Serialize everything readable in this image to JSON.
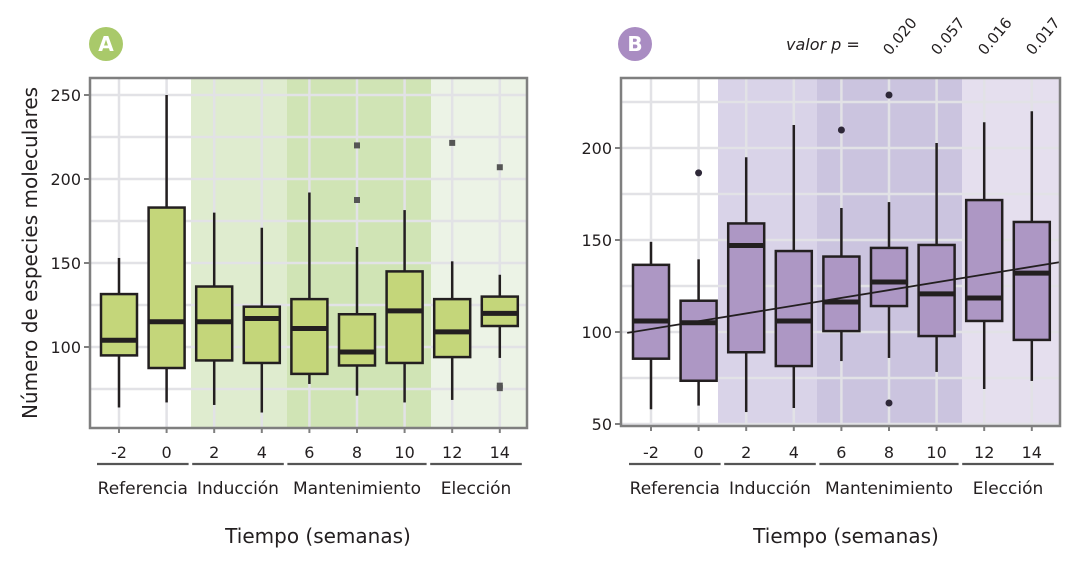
{
  "chart_data": [
    {
      "type": "boxplot",
      "panel_label": "A",
      "title": "",
      "xlabel": "Tiempo (semanas)",
      "ylabel": "Número de especies moleculares",
      "ylim": [
        55,
        258
      ],
      "yticks": [
        100,
        150,
        200,
        250
      ],
      "categories": [
        "-2",
        "0",
        "2",
        "4",
        "6",
        "8",
        "10",
        "12",
        "14"
      ],
      "groups": [
        {
          "label": "Referencia",
          "categories": [
            "-2",
            "0"
          ],
          "shade": "#ffffff"
        },
        {
          "label": "Inducción",
          "categories": [
            "2",
            "4"
          ],
          "shade": "#dfeccf"
        },
        {
          "label": "Mantenimiento",
          "categories": [
            "6",
            "8",
            "10"
          ],
          "shade": "#d0e4b5"
        },
        {
          "label": "Elección",
          "categories": [
            "12",
            "14"
          ],
          "shade": "#ecf3e6"
        }
      ],
      "boxes": [
        {
          "week": "-2",
          "whisker_low": 64,
          "q1": 95,
          "median": 104,
          "q3": 131.5,
          "whisker_high": 153,
          "outliers": []
        },
        {
          "week": "0",
          "whisker_low": 67,
          "q1": 87.5,
          "median": 115,
          "q3": 183,
          "whisker_high": 250,
          "outliers": []
        },
        {
          "week": "2",
          "whisker_low": 65.5,
          "q1": 92,
          "median": 115,
          "q3": 136,
          "whisker_high": 180,
          "outliers": []
        },
        {
          "week": "4",
          "whisker_low": 61,
          "q1": 90.5,
          "median": 117,
          "q3": 124,
          "whisker_high": 171,
          "outliers": []
        },
        {
          "week": "6",
          "whisker_low": 78,
          "q1": 84,
          "median": 111,
          "q3": 128.5,
          "whisker_high": 192,
          "outliers": []
        },
        {
          "week": "8",
          "whisker_low": 71,
          "q1": 89,
          "median": 97,
          "q3": 119.5,
          "whisker_high": 159.5,
          "outliers": [
            220,
            187.5
          ]
        },
        {
          "week": "10",
          "whisker_low": 67,
          "q1": 90.5,
          "median": 121.5,
          "q3": 145,
          "whisker_high": 181.5,
          "outliers": []
        },
        {
          "week": "12",
          "whisker_low": 68.5,
          "q1": 94,
          "median": 109,
          "q3": 128.5,
          "whisker_high": 151,
          "outliers": [
            221.5
          ]
        },
        {
          "week": "14",
          "whisker_low": 93.5,
          "q1": 112.5,
          "median": 120,
          "q3": 130,
          "whisker_high": 143,
          "outliers": [
            207,
            77,
            75.5
          ]
        }
      ],
      "box_fill": "#c4d67a",
      "outlier_shape": "square",
      "outlier_color": "#555555",
      "badge_color": "#a9c96a",
      "grid": true
    },
    {
      "type": "boxplot",
      "panel_label": "B",
      "title": "",
      "xlabel": "Tiempo (semanas)",
      "ylabel": "",
      "ylim": [
        48,
        238
      ],
      "yticks": [
        50,
        100,
        150,
        200
      ],
      "categories": [
        "-2",
        "0",
        "2",
        "4",
        "6",
        "8",
        "10",
        "12",
        "14"
      ],
      "groups": [
        {
          "label": "Referencia",
          "categories": [
            "-2",
            "0"
          ],
          "shade": "#ffffff"
        },
        {
          "label": "Inducción",
          "categories": [
            "2",
            "4"
          ],
          "shade": "#d9d3e8"
        },
        {
          "label": "Mantenimiento",
          "categories": [
            "6",
            "8",
            "10"
          ],
          "shade": "#cbc4df"
        },
        {
          "label": "Elección",
          "categories": [
            "12",
            "14"
          ],
          "shade": "#e5dfee"
        }
      ],
      "boxes": [
        {
          "week": "-2",
          "whisker_low": 58,
          "q1": 85.5,
          "median": 106,
          "q3": 136.5,
          "whisker_high": 149,
          "outliers": []
        },
        {
          "week": "0",
          "whisker_low": 60,
          "q1": 73.5,
          "median": 105,
          "q3": 117,
          "whisker_high": 139.5,
          "outliers": [
            186.5
          ]
        },
        {
          "week": "2",
          "whisker_low": 56.5,
          "q1": 89,
          "median": 147,
          "q3": 159,
          "whisker_high": 195,
          "outliers": []
        },
        {
          "week": "4",
          "whisker_low": 58.7,
          "q1": 81.5,
          "median": 106,
          "q3": 144,
          "whisker_high": 212.5,
          "outliers": []
        },
        {
          "week": "6",
          "whisker_low": 84.2,
          "q1": 100.5,
          "median": 116.3,
          "q3": 141,
          "whisker_high": 167.4,
          "outliers": [
            209.8
          ]
        },
        {
          "week": "8",
          "whisker_low": 85.9,
          "q1": 114.1,
          "median": 127.2,
          "q3": 145.7,
          "whisker_high": 170.6,
          "outliers": [
            228.8,
            61.4
          ]
        },
        {
          "week": "10",
          "whisker_low": 78.3,
          "q1": 97.8,
          "median": 120.7,
          "q3": 147.3,
          "whisker_high": 202.7,
          "outliers": []
        },
        {
          "week": "12",
          "whisker_low": 69,
          "q1": 106,
          "median": 118.5,
          "q3": 171.7,
          "whisker_high": 214,
          "outliers": []
        },
        {
          "week": "14",
          "whisker_low": 73.4,
          "q1": 95.7,
          "median": 132,
          "q3": 159.8,
          "whisker_high": 220,
          "outliers": []
        }
      ],
      "trend_line": {
        "x_start_week": -3,
        "y_start": 99.5,
        "x_end_week": 15.2,
        "y_end": 138
      },
      "box_fill": "#ad97c4",
      "outlier_shape": "circle",
      "outlier_color": "#2e2838",
      "badge_color": "#a98cc2",
      "p_value_label": "valor p =",
      "p_values": [
        "0.020",
        "0.057",
        "0.016",
        "0.017"
      ],
      "grid": true
    }
  ]
}
